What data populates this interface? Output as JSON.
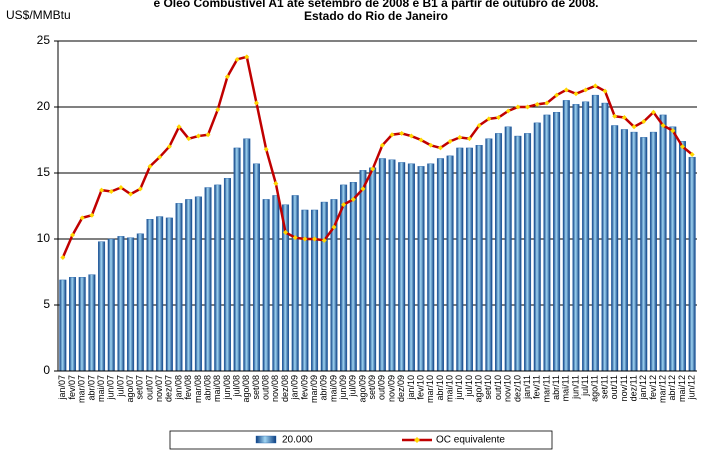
{
  "chart_data": {
    "type": "bar_line",
    "title": "e Óleo Combustível A1 até setembro de 2008 e B1 a partir de outubro de 2008.",
    "subtitle": "Estado do Rio de Janeiro",
    "y_label": "US$/MMBtu",
    "categories": [
      "jan/07",
      "fev/07",
      "mar/07",
      "abr/07",
      "mai/07",
      "jun/07",
      "jul/07",
      "ago/07",
      "set/07",
      "out/07",
      "nov/07",
      "dez/07",
      "jan/08",
      "fev/08",
      "mar/08",
      "abr/08",
      "mai/08",
      "jun/08",
      "jul/08",
      "ago/08",
      "set/08",
      "out/08",
      "nov/08",
      "dez/08",
      "jan/09",
      "fev/09",
      "mar/09",
      "abr/09",
      "mai/09",
      "jun/09",
      "jul/09",
      "ago/09",
      "set/09",
      "out/09",
      "nov/09",
      "dez/09",
      "jan/10",
      "fev/10",
      "mar/10",
      "abr/10",
      "mai/10",
      "jun/10",
      "jul/10",
      "ago/10",
      "set/10",
      "out/10",
      "nov/10",
      "dez/10",
      "jan/11",
      "fev/11",
      "mar/11",
      "abr/11",
      "mai/11",
      "jun/11",
      "jul/11",
      "ago/11",
      "set/11",
      "out/11",
      "nov/11",
      "dez/11",
      "jan/12",
      "fev/12",
      "mar/12",
      "abr/12",
      "mai/12",
      "jun/12"
    ],
    "series": [
      {
        "name": "20.000",
        "kind": "bar",
        "color": "#1f5fa8",
        "values": [
          6.9,
          7.1,
          7.1,
          7.3,
          9.8,
          10.0,
          10.2,
          10.1,
          10.4,
          11.5,
          11.7,
          11.6,
          12.7,
          13.0,
          13.2,
          13.9,
          14.1,
          14.6,
          16.9,
          17.6,
          15.7,
          13.0,
          13.3,
          12.6,
          13.3,
          12.2,
          12.2,
          12.8,
          13.0,
          14.1,
          14.3,
          15.2,
          15.4,
          16.1,
          16.0,
          15.8,
          15.7,
          15.5,
          15.7,
          16.1,
          16.3,
          16.9,
          16.9,
          17.1,
          17.6,
          18.0,
          18.5,
          17.8,
          18.0,
          18.8,
          19.4,
          19.6,
          20.5,
          20.2,
          20.4,
          20.9,
          20.3,
          18.6,
          18.3,
          18.1,
          17.7,
          18.1,
          19.4,
          18.5,
          17.4,
          16.2
        ]
      },
      {
        "name": "OC equivalente",
        "kind": "line",
        "color": "#c00000",
        "marker_color": "#ffd700",
        "values": [
          8.6,
          10.3,
          11.6,
          11.8,
          13.7,
          13.6,
          13.9,
          13.4,
          13.8,
          15.5,
          16.2,
          17.0,
          18.5,
          17.6,
          17.8,
          17.9,
          19.8,
          22.3,
          23.6,
          23.8,
          20.3,
          16.8,
          14.2,
          10.5,
          10.1,
          10.0,
          10.0,
          9.9,
          10.9,
          12.6,
          13.0,
          13.8,
          15.3,
          17.1,
          17.9,
          18.0,
          17.8,
          17.5,
          17.1,
          16.9,
          17.4,
          17.7,
          17.6,
          18.6,
          19.1,
          19.2,
          19.7,
          20.0,
          20.0,
          20.2,
          20.3,
          20.9,
          21.3,
          21.0,
          21.3,
          21.6,
          21.2,
          19.3,
          19.2,
          18.5,
          18.9,
          19.6,
          18.6,
          18.2,
          17.0,
          16.4
        ]
      }
    ],
    "ylim": [
      0,
      25
    ],
    "yticks": [
      0,
      5,
      10,
      15,
      20,
      25
    ],
    "grid": true,
    "legend": "bottom"
  }
}
